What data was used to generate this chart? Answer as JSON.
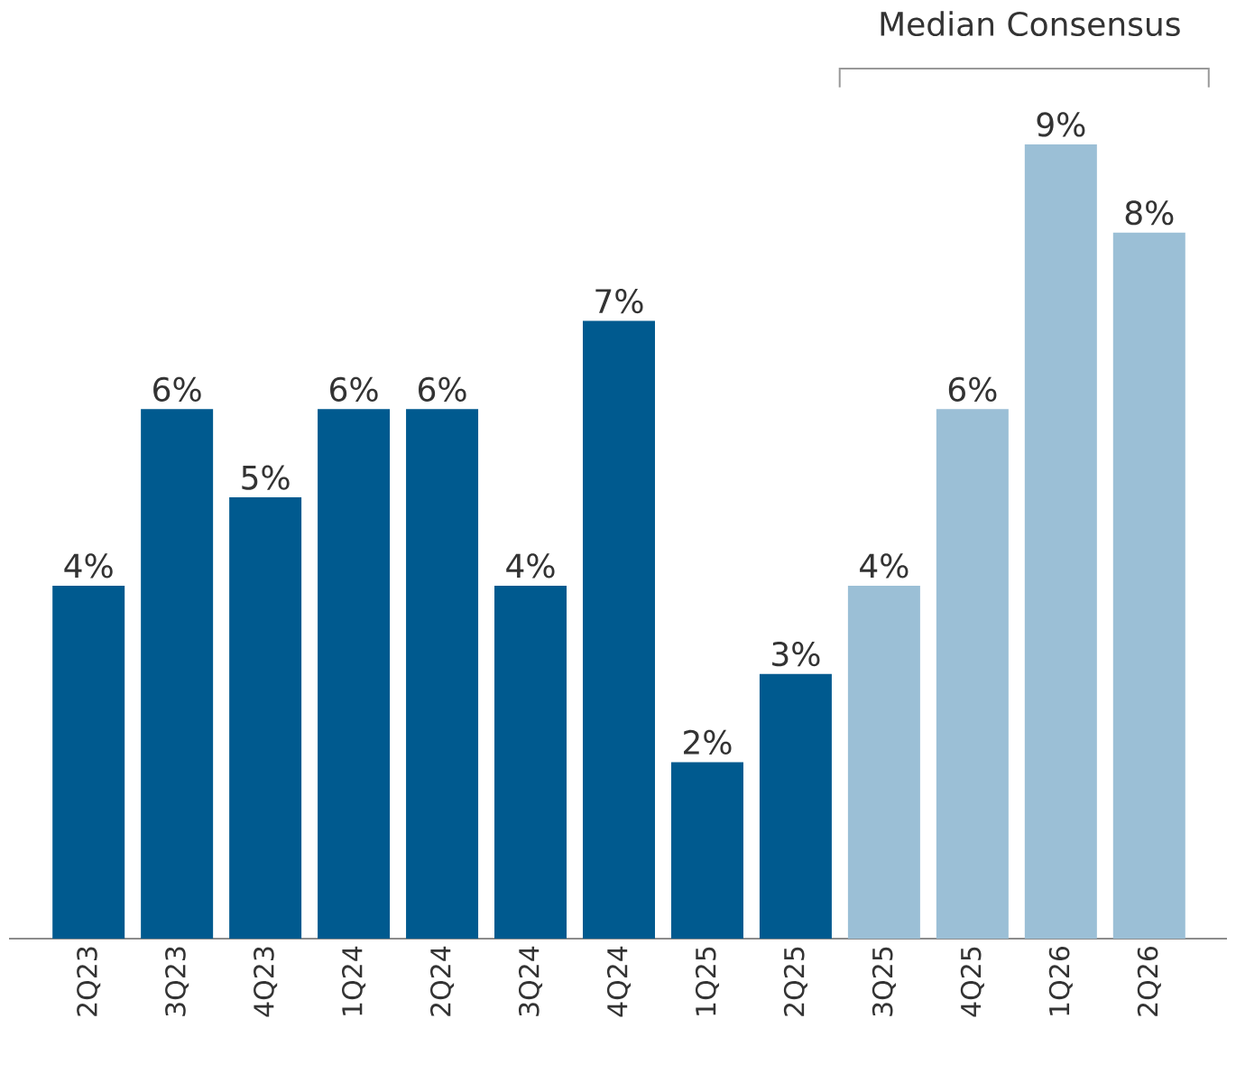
{
  "chart_data": {
    "type": "bar",
    "categories": [
      "2Q23",
      "3Q23",
      "4Q23",
      "1Q24",
      "2Q24",
      "3Q24",
      "4Q24",
      "1Q25",
      "2Q25",
      "3Q25",
      "4Q25",
      "1Q26",
      "2Q26"
    ],
    "values": [
      4,
      6,
      5,
      6,
      6,
      4,
      7,
      2,
      3,
      4,
      6,
      9,
      8
    ],
    "value_labels": [
      "4%",
      "6%",
      "5%",
      "6%",
      "6%",
      "4%",
      "7%",
      "2%",
      "3%",
      "4%",
      "6%",
      "9%",
      "8%"
    ],
    "colors": [
      "#005a8f",
      "#005a8f",
      "#005a8f",
      "#005a8f",
      "#005a8f",
      "#005a8f",
      "#005a8f",
      "#005a8f",
      "#005a8f",
      "#9bbfd6",
      "#9bbfd6",
      "#9bbfd6",
      "#9bbfd6"
    ],
    "annotations": [
      "Median Consensus"
    ]
  }
}
